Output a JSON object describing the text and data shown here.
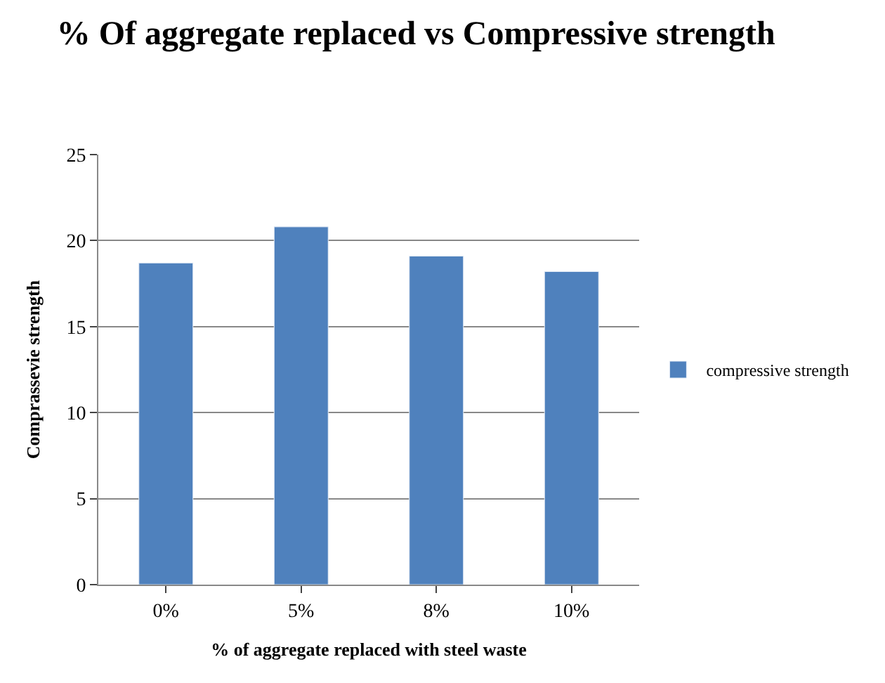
{
  "chart_data": {
    "type": "bar",
    "title": "% Of aggregate replaced vs Compressive strength",
    "xlabel": "% of aggregate replaced with steel waste",
    "ylabel": "Comprassevie strength",
    "categories": [
      "0%",
      "5%",
      "8%",
      "10%"
    ],
    "series": [
      {
        "name": "compressive strength",
        "color": "#4f81bd",
        "values": [
          18.7,
          20.8,
          19.1,
          18.2
        ]
      }
    ],
    "ylim": [
      0,
      25
    ],
    "yticks": [
      0,
      5,
      10,
      15,
      20,
      25
    ],
    "grid": "y",
    "legend": "right"
  }
}
